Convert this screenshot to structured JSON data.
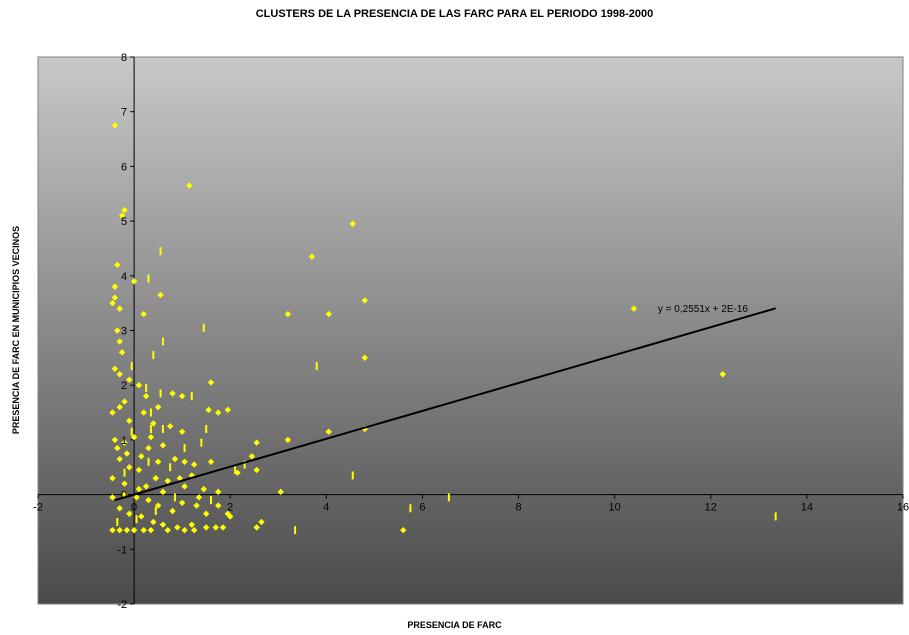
{
  "chart_data": {
    "type": "scatter",
    "title": "CLUSTERS DE LA PRESENCIA DE LAS FARC PARA EL PERIODO 1998-2000",
    "xlabel": "PRESENCIA DE FARC",
    "ylabel": "PRESENCIA DE FARC EN MUNICIPIOS VECINOS",
    "xlim": [
      -2,
      16
    ],
    "ylim": [
      -2,
      8
    ],
    "x_ticks": [
      "-2",
      "0",
      "2",
      "4",
      "6",
      "8",
      "10",
      "12",
      "14",
      "16"
    ],
    "y_ticks": [
      "-2",
      "-1",
      "0",
      "1",
      "2",
      "3",
      "4",
      "5",
      "6",
      "7",
      "8"
    ],
    "grid": false,
    "legend": "none",
    "marker_color": "#ffff00",
    "background_gradient": [
      "#c8c8c8",
      "#4a4a4a"
    ],
    "trendline": {
      "equation": "y = 0,2551x + 2E-16",
      "slope": 0.2551,
      "intercept": 0,
      "x_range": [
        -0.4,
        13.35
      ],
      "color": "#000000"
    },
    "series": [
      {
        "marker": "diamond",
        "points": [
          [
            -0.4,
            6.75
          ],
          [
            -0.2,
            5.2
          ],
          [
            -0.25,
            5.1
          ],
          [
            1.15,
            5.65
          ],
          [
            4.55,
            4.95
          ],
          [
            3.7,
            4.35
          ],
          [
            -0.35,
            4.2
          ],
          [
            -0.4,
            3.8
          ],
          [
            -0.45,
            3.5
          ],
          [
            -0.3,
            3.4
          ],
          [
            0.0,
            3.9
          ],
          [
            0.55,
            3.65
          ],
          [
            -0.4,
            3.6
          ],
          [
            -0.35,
            3.0
          ],
          [
            -0.3,
            2.8
          ],
          [
            -0.25,
            2.6
          ],
          [
            -0.4,
            2.3
          ],
          [
            -0.3,
            2.2
          ],
          [
            0.2,
            3.3
          ],
          [
            3.2,
            3.3
          ],
          [
            4.05,
            3.3
          ],
          [
            4.8,
            3.55
          ],
          [
            4.8,
            2.5
          ],
          [
            10.4,
            3.4
          ],
          [
            12.25,
            2.2
          ],
          [
            -0.1,
            2.1
          ],
          [
            0.1,
            2.0
          ],
          [
            0.25,
            1.8
          ],
          [
            0.5,
            1.6
          ],
          [
            0.8,
            1.85
          ],
          [
            1.0,
            1.8
          ],
          [
            1.6,
            2.05
          ],
          [
            1.95,
            1.55
          ],
          [
            1.75,
            1.5
          ],
          [
            1.55,
            1.55
          ],
          [
            1.0,
            1.15
          ],
          [
            0.75,
            1.25
          ],
          [
            0.4,
            1.3
          ],
          [
            0.2,
            1.5
          ],
          [
            -0.2,
            1.7
          ],
          [
            -0.1,
            1.35
          ],
          [
            -0.3,
            1.6
          ],
          [
            -0.45,
            1.5
          ],
          [
            -0.4,
            1.0
          ],
          [
            -0.2,
            0.95
          ],
          [
            0.0,
            1.05
          ],
          [
            0.3,
            0.85
          ],
          [
            0.6,
            0.9
          ],
          [
            0.85,
            0.65
          ],
          [
            1.25,
            0.55
          ],
          [
            1.05,
            0.6
          ],
          [
            1.6,
            0.6
          ],
          [
            2.55,
            0.95
          ],
          [
            2.45,
            0.7
          ],
          [
            2.15,
            0.4
          ],
          [
            2.55,
            0.45
          ],
          [
            3.2,
            1.0
          ],
          [
            4.05,
            1.15
          ],
          [
            4.8,
            1.2
          ],
          [
            3.05,
            0.05
          ],
          [
            -0.3,
            0.65
          ],
          [
            -0.1,
            0.5
          ],
          [
            0.1,
            0.45
          ],
          [
            0.45,
            0.3
          ],
          [
            0.7,
            0.25
          ],
          [
            0.95,
            0.3
          ],
          [
            1.2,
            0.35
          ],
          [
            1.45,
            0.1
          ],
          [
            1.75,
            0.05
          ],
          [
            1.95,
            -0.35
          ],
          [
            1.75,
            -0.2
          ],
          [
            1.5,
            -0.35
          ],
          [
            1.3,
            -0.2
          ],
          [
            1.0,
            -0.15
          ],
          [
            0.8,
            -0.3
          ],
          [
            0.5,
            -0.2
          ],
          [
            0.3,
            -0.1
          ],
          [
            0.1,
            0.1
          ],
          [
            -0.2,
            0.2
          ],
          [
            -0.45,
            0.3
          ],
          [
            -0.45,
            -0.05
          ],
          [
            -0.3,
            -0.25
          ],
          [
            -0.1,
            -0.35
          ],
          [
            0.15,
            -0.4
          ],
          [
            0.4,
            -0.5
          ],
          [
            0.6,
            -0.55
          ],
          [
            0.9,
            -0.6
          ],
          [
            1.2,
            -0.55
          ],
          [
            1.5,
            -0.6
          ],
          [
            1.7,
            -0.6
          ],
          [
            1.85,
            -0.6
          ],
          [
            2.0,
            -0.4
          ],
          [
            2.65,
            -0.5
          ],
          [
            2.55,
            -0.6
          ],
          [
            5.6,
            -0.65
          ],
          [
            -0.45,
            -0.65
          ],
          [
            -0.3,
            -0.65
          ],
          [
            -0.15,
            -0.65
          ],
          [
            0.0,
            -0.65
          ],
          [
            0.2,
            -0.65
          ],
          [
            0.35,
            -0.65
          ],
          [
            0.7,
            -0.65
          ],
          [
            1.05,
            -0.65
          ],
          [
            1.25,
            -0.65
          ],
          [
            -0.2,
            0.0
          ],
          [
            0.05,
            -0.05
          ],
          [
            0.25,
            0.15
          ],
          [
            0.6,
            0.05
          ],
          [
            -0.35,
            0.85
          ],
          [
            -0.15,
            0.75
          ],
          [
            0.15,
            0.7
          ],
          [
            0.5,
            0.6
          ],
          [
            0.35,
            1.05
          ],
          [
            1.05,
            0.15
          ],
          [
            1.35,
            -0.05
          ]
        ]
      },
      {
        "marker": "dash",
        "points": [
          [
            0.55,
            4.45
          ],
          [
            0.3,
            3.95
          ],
          [
            1.45,
            3.05
          ],
          [
            0.6,
            2.8
          ],
          [
            0.4,
            2.55
          ],
          [
            3.8,
            2.35
          ],
          [
            -0.05,
            2.35
          ],
          [
            0.55,
            1.85
          ],
          [
            0.35,
            1.5
          ],
          [
            1.2,
            1.8
          ],
          [
            0.35,
            1.2
          ],
          [
            0.6,
            1.2
          ],
          [
            1.5,
            1.2
          ],
          [
            1.4,
            0.95
          ],
          [
            0.3,
            0.6
          ],
          [
            0.75,
            0.5
          ],
          [
            1.05,
            0.85
          ],
          [
            0.25,
            1.95
          ],
          [
            4.55,
            0.35
          ],
          [
            2.3,
            0.55
          ],
          [
            2.1,
            0.45
          ],
          [
            -0.05,
            1.15
          ],
          [
            -0.2,
            0.4
          ],
          [
            6.55,
            -0.05
          ],
          [
            5.75,
            -0.25
          ],
          [
            3.35,
            -0.65
          ],
          [
            13.35,
            -0.4
          ],
          [
            0.85,
            -0.05
          ],
          [
            0.45,
            -0.3
          ],
          [
            1.6,
            -0.1
          ],
          [
            -0.35,
            -0.5
          ],
          [
            0.05,
            -0.45
          ]
        ]
      }
    ]
  }
}
